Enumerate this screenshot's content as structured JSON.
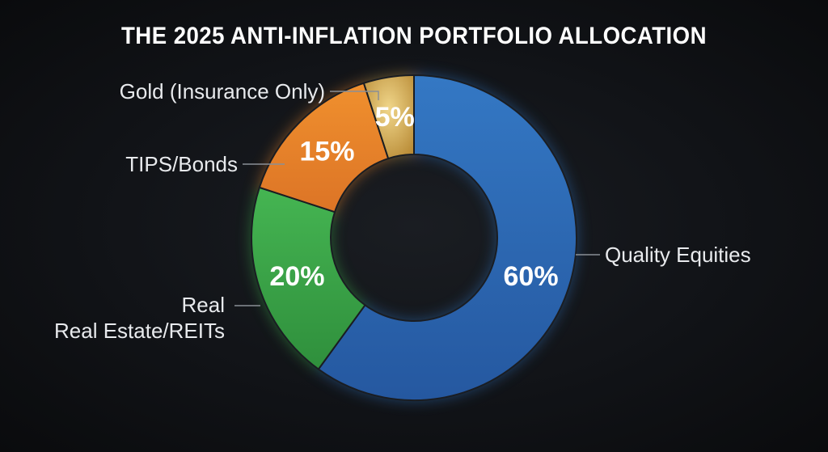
{
  "chart_data": {
    "type": "pie",
    "title": "THE 2025 ANTI-INFLATION PORTFOLIO ALLOCATION",
    "donut": true,
    "slices": [
      {
        "label": "Quality Equities",
        "value": 60,
        "value_label": "60%",
        "color": "#2f6fb8"
      },
      {
        "label": "Real Estate/REITs",
        "label_prefix": "Real",
        "value": 20,
        "value_label": "20%",
        "color": "#3aa64a"
      },
      {
        "label": "TIPS/Bonds",
        "value": 15,
        "value_label": "15%",
        "color": "#e8842a"
      },
      {
        "label": "Gold (Insurance Only)",
        "value": 5,
        "value_label": "5%",
        "color": "#c9a24c"
      }
    ]
  }
}
